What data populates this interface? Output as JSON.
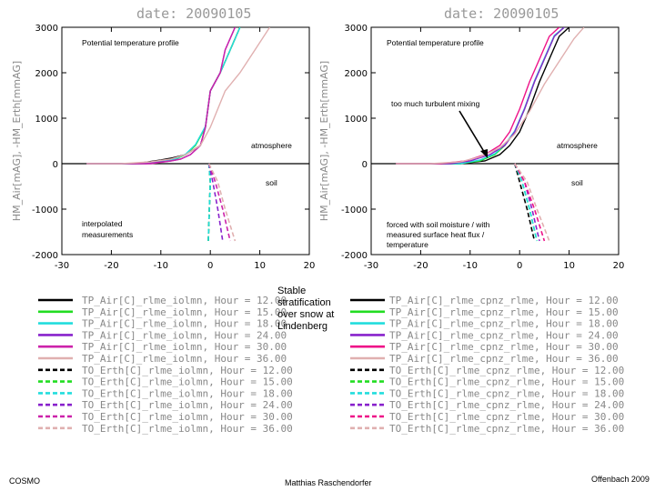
{
  "chart_data": [
    {
      "type": "line",
      "date_label": "date: 20090105",
      "xlim": [
        -30,
        20
      ],
      "ylim": [
        -2000,
        3000
      ],
      "xticks": [
        "-30",
        "-20",
        "-10",
        "0",
        "10",
        "20"
      ],
      "yticks": [
        "3000",
        "2000",
        "1000",
        "0",
        "-1000",
        "-2000"
      ],
      "ylabel": "HM_Air[mAG], -HM_Erth[mmAG]",
      "annotations": {
        "title": "Potential temperature profile",
        "atmosphere": "atmosphere",
        "soil": "soil",
        "note": "interpolated measurements"
      },
      "series": [
        {
          "name": "TP_Air[C]_rlme_iolmn, Hour = 12.00",
          "color": "#000000",
          "dash": false,
          "x": [
            -25,
            -15,
            -10,
            -8,
            -5,
            -2,
            -1,
            0,
            2,
            4,
            6
          ],
          "y": [
            0,
            0,
            80,
            120,
            200,
            400,
            800,
            1600,
            2000,
            2500,
            3000
          ]
        },
        {
          "name": "TP_Air[C]_rlme_iolmn, Hour = 15.00",
          "color": "#22dd22",
          "dash": false,
          "x": [
            -25,
            -14,
            -9,
            -7,
            -5,
            -3,
            -1,
            0,
            2,
            4,
            6
          ],
          "y": [
            0,
            0,
            60,
            100,
            200,
            400,
            800,
            1600,
            2000,
            2500,
            3000
          ]
        },
        {
          "name": "TP_Air[C]_rlme_iolmn, Hour = 18.00",
          "color": "#22dddd",
          "dash": false,
          "x": [
            -25,
            -14,
            -9,
            -7,
            -5,
            -3,
            -1,
            0,
            2,
            4,
            6
          ],
          "y": [
            0,
            0,
            60,
            110,
            210,
            420,
            820,
            1600,
            2000,
            2500,
            3000
          ]
        },
        {
          "name": "TP_Air[C]_rlme_iolmn, Hour = 24.00",
          "color": "#8822cc",
          "dash": false,
          "x": [
            -25,
            -13,
            -8,
            -6,
            -4,
            -2,
            -1,
            0,
            2,
            3,
            5
          ],
          "y": [
            0,
            0,
            60,
            100,
            200,
            400,
            800,
            1600,
            2000,
            2500,
            3000
          ]
        },
        {
          "name": "TP_Air[C]_rlme_iolmn, Hour = 30.00",
          "color": "#cc22aa",
          "dash": false,
          "x": [
            -25,
            -12,
            -8,
            -6,
            -4,
            -2,
            -1,
            0,
            2,
            3,
            5
          ],
          "y": [
            0,
            0,
            60,
            100,
            200,
            400,
            800,
            1600,
            2000,
            2500,
            3000
          ]
        },
        {
          "name": "TP_Air[C]_rlme_iolmn, Hour = 36.00",
          "color": "#e0b0b0",
          "dash": false,
          "x": [
            -25,
            -18,
            -12,
            -8,
            -5,
            -2,
            0,
            3,
            6,
            9,
            12
          ],
          "y": [
            0,
            0,
            40,
            100,
            200,
            400,
            800,
            1600,
            2000,
            2500,
            3000
          ]
        },
        {
          "name": "TO_Erth[C]_rlme_iolmn, Hour = 12.00",
          "color": "#000000",
          "dash": true,
          "x": [
            -0.3,
            0,
            -0.2,
            -0.4
          ],
          "y": [
            0,
            -400,
            -1000,
            -1700
          ]
        },
        {
          "name": "TO_Erth[C]_rlme_iolmn, Hour = 15.00",
          "color": "#22dd22",
          "dash": true,
          "x": [
            -0.3,
            0,
            -0.2,
            -0.4
          ],
          "y": [
            0,
            -400,
            -1000,
            -1700
          ]
        },
        {
          "name": "TO_Erth[C]_rlme_iolmn, Hour = 18.00",
          "color": "#22dddd",
          "dash": true,
          "x": [
            -0.3,
            0,
            -0.2,
            -0.4
          ],
          "y": [
            0,
            -400,
            -1000,
            -1700
          ]
        },
        {
          "name": "TO_Erth[C]_rlme_iolmn, Hour = 24.00",
          "color": "#8822cc",
          "dash": true,
          "x": [
            -0.3,
            0.5,
            1.5,
            2.5
          ],
          "y": [
            0,
            -400,
            -1000,
            -1700
          ]
        },
        {
          "name": "TO_Erth[C]_rlme_iolmn, Hour = 30.00",
          "color": "#cc22aa",
          "dash": true,
          "x": [
            -0.3,
            1,
            2.5,
            4
          ],
          "y": [
            0,
            -400,
            -1000,
            -1700
          ]
        },
        {
          "name": "TO_Erth[C]_rlme_iolmn, Hour = 36.00",
          "color": "#e0b0b0",
          "dash": true,
          "x": [
            -0.3,
            1.5,
            3,
            5
          ],
          "y": [
            0,
            -400,
            -1000,
            -1700
          ]
        }
      ]
    },
    {
      "type": "line",
      "date_label": "date: 20090105",
      "xlim": [
        -30,
        20
      ],
      "ylim": [
        -2000,
        3000
      ],
      "xticks": [
        "-30",
        "-20",
        "-10",
        "0",
        "10",
        "20"
      ],
      "yticks": [
        "3000",
        "2000",
        "1000",
        "0",
        "-1000",
        "-2000"
      ],
      "ylabel": "HM_Air[mAG], -HM_Erth[mmAG]",
      "annotations": {
        "title": "Potential temperature profile",
        "atmosphere": "atmosphere",
        "soil": "soil",
        "mixing": "too much turbulent mixing",
        "overlap_text": "forced with soil moisture / with measured surface heat flux / temperature"
      },
      "series": [
        {
          "name": "TP_Air[C]_rlme_cpnz_rlme, Hour = 12.00",
          "color": "#000000",
          "dash": false,
          "x": [
            -25,
            -12,
            -7,
            -4,
            -2,
            0,
            2,
            4,
            6,
            8,
            10
          ],
          "y": [
            0,
            0,
            60,
            200,
            400,
            700,
            1200,
            1800,
            2300,
            2800,
            3000
          ]
        },
        {
          "name": "TP_Air[C]_rlme_cpnz_rlme, Hour = 15.00",
          "color": "#22dd22",
          "dash": false,
          "x": [
            -25,
            -12,
            -8,
            -5,
            -3,
            -1,
            1,
            3,
            5,
            7,
            9
          ],
          "y": [
            0,
            0,
            60,
            200,
            400,
            700,
            1200,
            1800,
            2300,
            2800,
            3000
          ]
        },
        {
          "name": "TP_Air[C]_rlme_cpnz_rlme, Hour = 18.00",
          "color": "#22dddd",
          "dash": false,
          "x": [
            -25,
            -12,
            -8,
            -5,
            -3,
            -1,
            1,
            3,
            5,
            7,
            9
          ],
          "y": [
            0,
            0,
            80,
            220,
            420,
            720,
            1220,
            1820,
            2320,
            2820,
            3000
          ]
        },
        {
          "name": "TP_Air[C]_rlme_cpnz_rlme, Hour = 24.00",
          "color": "#8822cc",
          "dash": false,
          "x": [
            -25,
            -14,
            -10,
            -6,
            -3,
            -1,
            1,
            3,
            5,
            7,
            9
          ],
          "y": [
            0,
            0,
            60,
            200,
            400,
            700,
            1200,
            1800,
            2300,
            2800,
            3000
          ]
        },
        {
          "name": "TP_Air[C]_rlme_cpnz_rlme, Hour = 30.00",
          "color": "#ee1188",
          "dash": false,
          "x": [
            -25,
            -16,
            -11,
            -7,
            -4,
            -2,
            0,
            2,
            4,
            6,
            8
          ],
          "y": [
            0,
            0,
            60,
            200,
            400,
            700,
            1200,
            1800,
            2300,
            2800,
            3000
          ]
        },
        {
          "name": "TP_Air[C]_rlme_cpnz_rlme, Hour = 36.00",
          "color": "#e0b0b0",
          "dash": false,
          "x": [
            -25,
            -18,
            -12,
            -8,
            -4,
            -1,
            2,
            5,
            8,
            11,
            13
          ],
          "y": [
            0,
            0,
            40,
            150,
            350,
            650,
            1150,
            1750,
            2250,
            2750,
            3000
          ]
        },
        {
          "name": "TO_Erth[C]_rlme_cpnz_rlme, Hour = 12.00",
          "color": "#000000",
          "dash": true,
          "x": [
            -1,
            0,
            1.5,
            3
          ],
          "y": [
            0,
            -400,
            -1000,
            -1700
          ]
        },
        {
          "name": "TO_Erth[C]_rlme_cpnz_rlme, Hour = 15.00",
          "color": "#22dd22",
          "dash": true,
          "x": [
            -1,
            0.5,
            2,
            3.5
          ],
          "y": [
            0,
            -400,
            -1000,
            -1700
          ]
        },
        {
          "name": "TO_Erth[C]_rlme_cpnz_rlme, Hour = 18.00",
          "color": "#22dddd",
          "dash": true,
          "x": [
            -1,
            0.5,
            2,
            3.5
          ],
          "y": [
            0,
            -400,
            -1000,
            -1700
          ]
        },
        {
          "name": "TO_Erth[C]_rlme_cpnz_rlme, Hour = 24.00",
          "color": "#8822cc",
          "dash": true,
          "x": [
            -1,
            1,
            2.5,
            4
          ],
          "y": [
            0,
            -400,
            -1000,
            -1700
          ]
        },
        {
          "name": "TO_Erth[C]_rlme_cpnz_rlme, Hour = 30.00",
          "color": "#ee1188",
          "dash": true,
          "x": [
            -1,
            1,
            3,
            5
          ],
          "y": [
            0,
            -400,
            -1000,
            -1700
          ]
        },
        {
          "name": "TO_Erth[C]_rlme_cpnz_rlme, Hour = 36.00",
          "color": "#e0b0b0",
          "dash": true,
          "x": [
            -1,
            1.5,
            3.5,
            6
          ],
          "y": [
            0,
            -400,
            -1000,
            -1700
          ]
        }
      ]
    }
  ],
  "center_note": "Stable stratification over snow at Lindenberg",
  "footer": {
    "left": "COSMO",
    "center": "Matthias Raschendorfer",
    "right": "Offenbach 2009"
  }
}
